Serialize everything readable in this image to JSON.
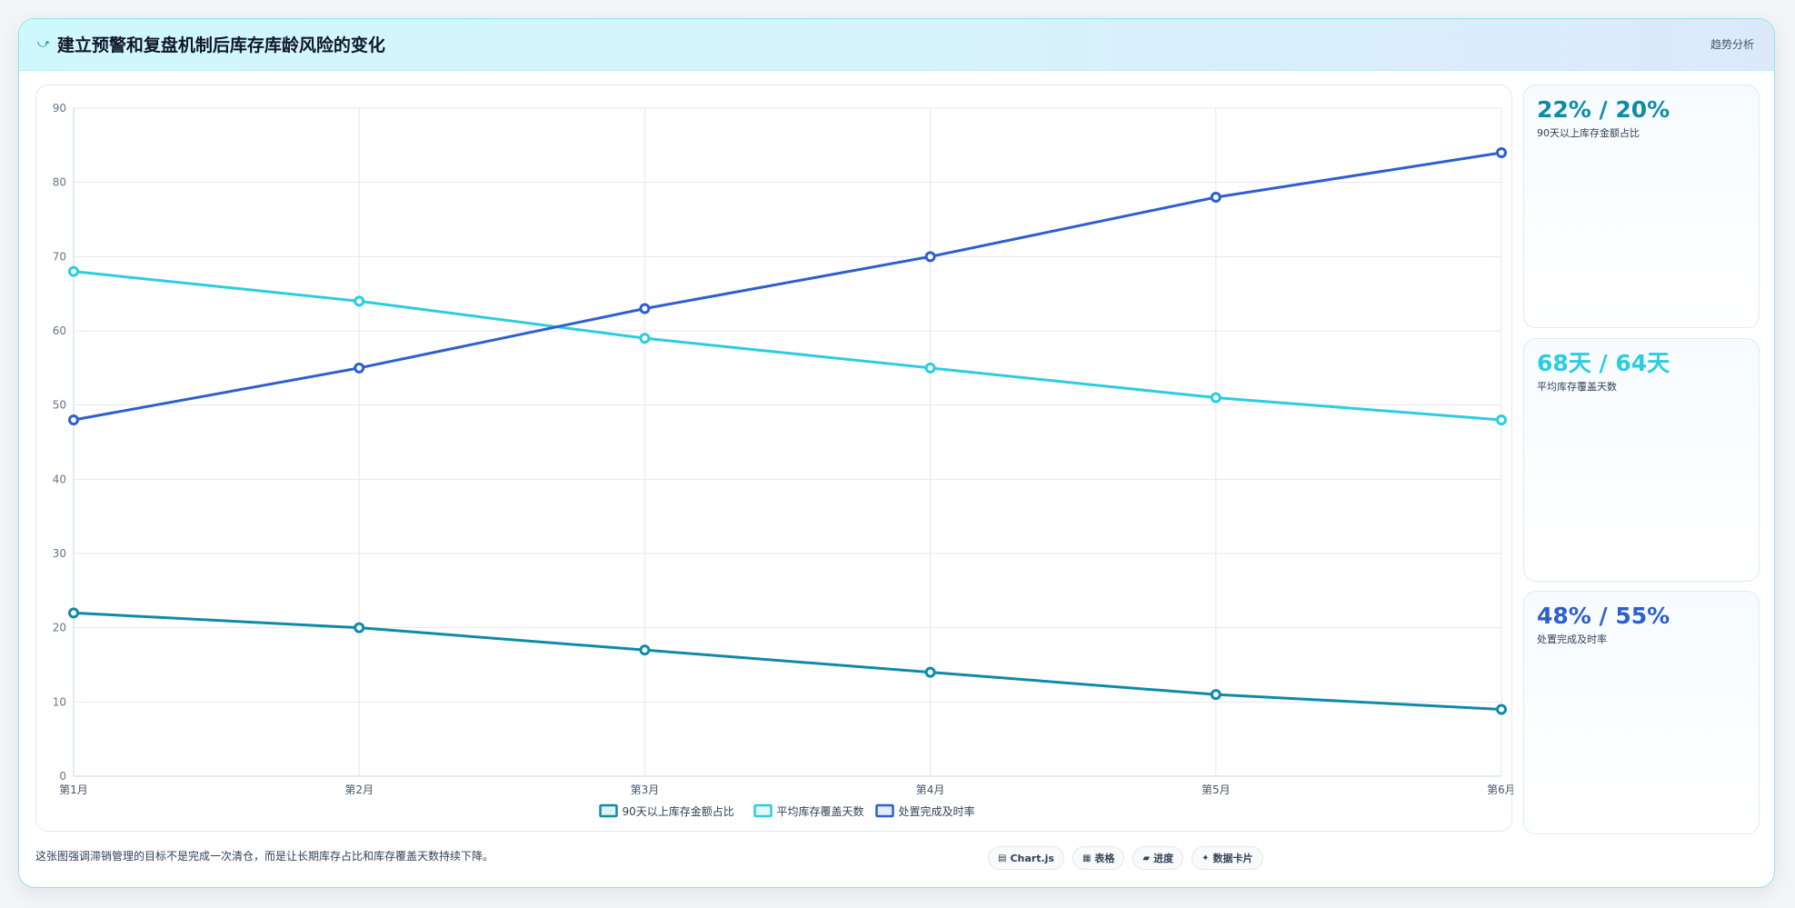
{
  "header": {
    "icon": "chart-line-icon",
    "title": "建立预警和复盘机制后库存库龄风险的变化",
    "tag": "趋势分析"
  },
  "chart_data": {
    "type": "line",
    "categories": [
      "第1月",
      "第2月",
      "第3月",
      "第4月",
      "第5月",
      "第6月"
    ],
    "ylim": [
      0,
      90
    ],
    "yticks": [
      0,
      10,
      20,
      30,
      40,
      50,
      60,
      70,
      80,
      90
    ],
    "grid": true,
    "legend": "bottom",
    "series": [
      {
        "name": "90天以上库存金额占比",
        "color": "#0e8ba8",
        "values": [
          22,
          20,
          17,
          14,
          11,
          9
        ]
      },
      {
        "name": "平均库存覆盖天数",
        "color": "#2ccde0",
        "values": [
          68,
          64,
          59,
          55,
          51,
          48
        ]
      },
      {
        "name": "处置完成及时率",
        "color": "#2d5fcf",
        "values": [
          48,
          55,
          63,
          70,
          78,
          84
        ]
      }
    ]
  },
  "kpis": [
    {
      "value": "22% / 20%",
      "label": "90天以上库存金额占比",
      "color": "#0e8ba8"
    },
    {
      "value": "68天 / 64天",
      "label": "平均库存覆盖天数",
      "color": "#2ccde0"
    },
    {
      "value": "48% / 55%",
      "label": "处置完成及时率",
      "color": "#2d5fcf"
    }
  ],
  "footer": {
    "note": "这张图强调滞销管理的目标不是完成一次清仓，而是让长期库存占比和库存覆盖天数持续下降。",
    "chips": [
      {
        "icon": "chartjs-icon",
        "glyph": "▤",
        "label": "Chart.js"
      },
      {
        "icon": "table-icon",
        "glyph": "▦",
        "label": "表格"
      },
      {
        "icon": "progress-icon",
        "glyph": "▰",
        "label": "进度"
      },
      {
        "icon": "data-card-icon",
        "glyph": "✦",
        "label": "数据卡片"
      }
    ]
  }
}
